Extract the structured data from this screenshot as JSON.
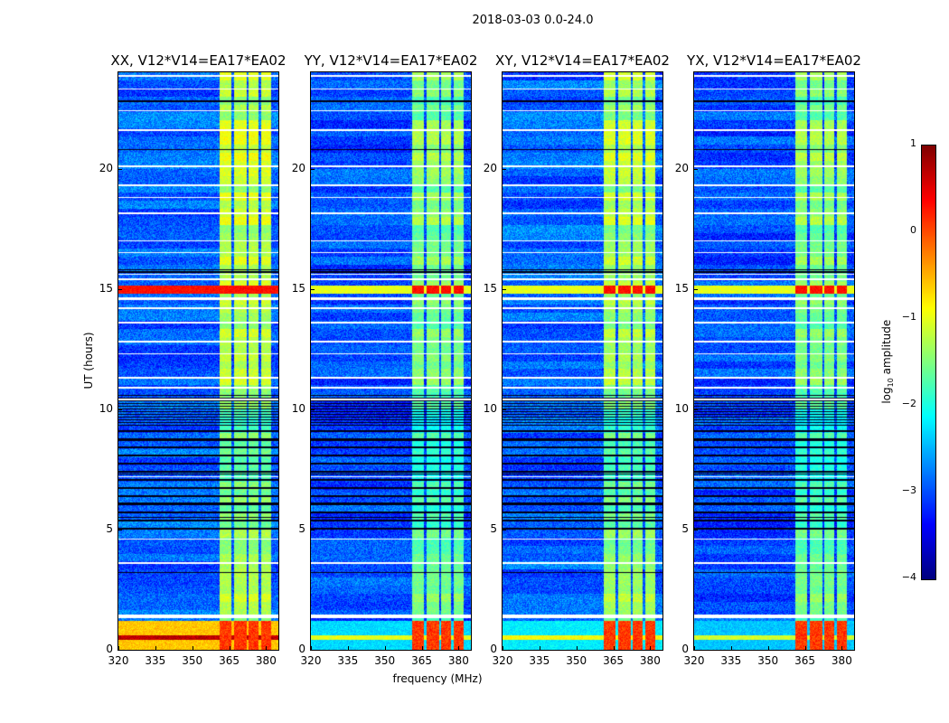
{
  "chart_data": {
    "type": "heatmap",
    "title": "2018-03-03 0.0-24.0",
    "xlabel": "frequency (MHz)",
    "ylabel": "UT (hours)",
    "xlim": [
      320,
      385
    ],
    "ylim": [
      0,
      24
    ],
    "xticks": [
      320,
      335,
      350,
      365,
      380
    ],
    "yticks": [
      0,
      5,
      10,
      15,
      20
    ],
    "grid": false,
    "colorbar": {
      "label_main": "log",
      "label_sub": "10",
      "label_rest": " amplitude",
      "colormap": "jet",
      "range": [
        -4,
        1
      ],
      "ticks": [
        "−4",
        "−3",
        "−2",
        "−1",
        "0",
        "1"
      ],
      "tick_values": [
        -4,
        -3,
        -2,
        -1,
        0,
        1
      ]
    },
    "panels": [
      {
        "title": "XX, V12*V14=EA17*EA02",
        "background_level": -2.9,
        "rfi_level": -1.2,
        "low_time_level": -0.6
      },
      {
        "title": "YY, V12*V14=EA17*EA02",
        "background_level": -3.0,
        "rfi_level": -1.5,
        "low_time_level": -2.3
      },
      {
        "title": "XY, V12*V14=EA17*EA02",
        "background_level": -2.9,
        "rfi_level": -1.3,
        "low_time_level": -2.2
      },
      {
        "title": "YX, V12*V14=EA17*EA02",
        "background_level": -3.0,
        "rfi_level": -1.5,
        "low_time_level": -2.4
      }
    ],
    "rfi_bands_mhz": [
      [
        361,
        366
      ],
      [
        367,
        372
      ],
      [
        373,
        377
      ],
      [
        378,
        382
      ]
    ],
    "rfi_peak_level": 0.3,
    "high_amplitude_hours": [
      [
        14.8,
        15.15
      ],
      [
        0.0,
        1.2
      ]
    ],
    "flagged_hours": [
      23.85,
      23.3,
      22.4,
      21.6,
      20.1,
      19.3,
      18.8,
      18.15,
      17.0,
      16.5,
      15.6,
      15.4,
      14.55,
      14.6,
      14.2,
      13.6,
      12.8,
      12.3,
      11.3,
      10.9,
      10.4,
      7.2,
      4.6,
      3.6,
      1.35,
      1.42
    ],
    "dark_hours": [
      22.8,
      20.8,
      15.8,
      15.7,
      8.7,
      7.3,
      6.1,
      5.5,
      3.2
    ],
    "dense_dark_range_hours": [
      9.3,
      10.6
    ],
    "periodic_dark_range_hours": [
      5.0,
      9.3
    ]
  }
}
